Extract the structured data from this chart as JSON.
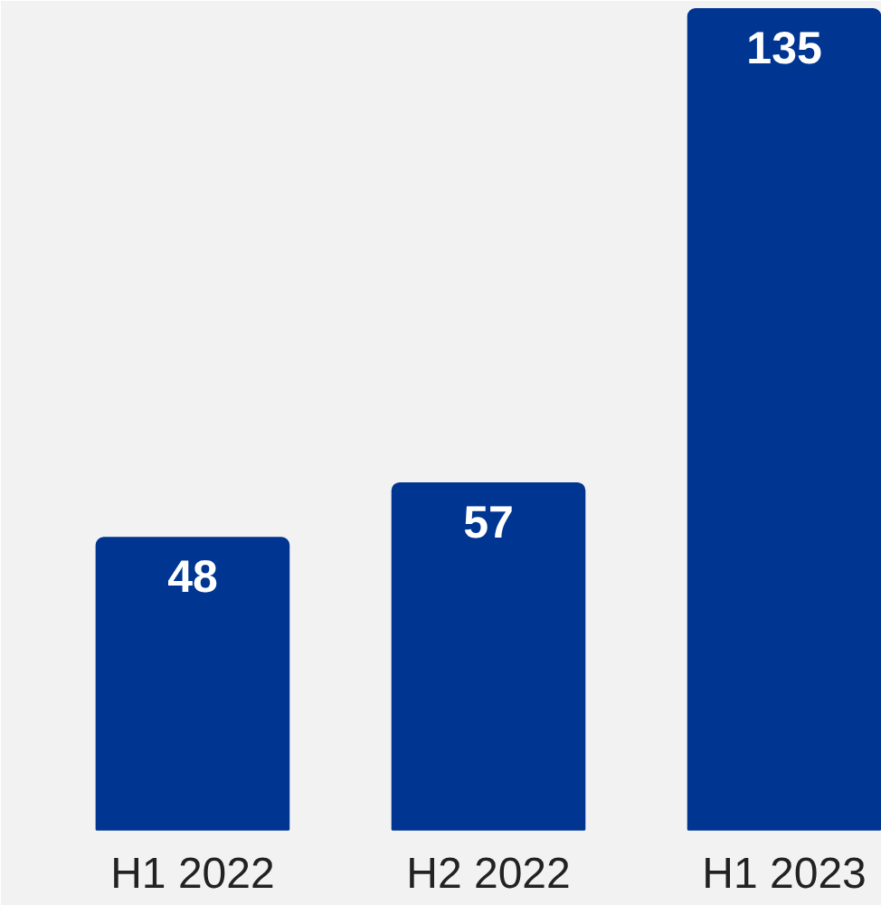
{
  "chart_data": {
    "type": "bar",
    "categories": [
      "H1 2022",
      "H2 2022",
      "H1 2023"
    ],
    "values": [
      48,
      57,
      135
    ],
    "color": "#003591",
    "data_labels": true
  }
}
